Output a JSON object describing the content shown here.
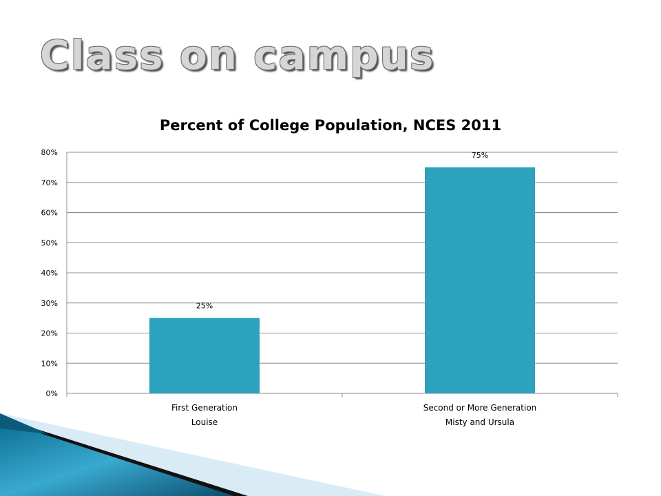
{
  "slide": {
    "title": "Class on campus"
  },
  "chart_data": {
    "type": "bar",
    "title": "Percent of College Population, NCES 2011",
    "categories": [
      [
        "First Generation",
        "Louise"
      ],
      [
        "Second or More Generation",
        "Misty and Ursula"
      ]
    ],
    "values": [
      25,
      75
    ],
    "data_labels": [
      "25%",
      "75%"
    ],
    "ylim": [
      0,
      80
    ],
    "yticks": [
      0,
      10,
      20,
      30,
      40,
      50,
      60,
      70,
      80
    ],
    "ytick_labels": [
      "0%",
      "10%",
      "20%",
      "30%",
      "40%",
      "50%",
      "60%",
      "70%",
      "80%"
    ],
    "grid": true,
    "bar_color": "#2ca2bf"
  }
}
